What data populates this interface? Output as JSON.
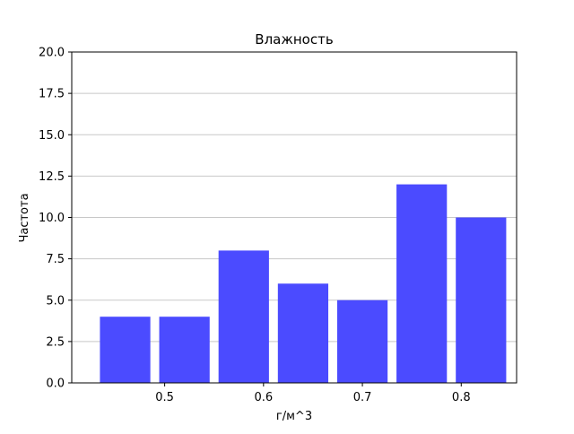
{
  "chart_data": {
    "type": "bar",
    "title": "Влажность",
    "xlabel": "г/м^3",
    "ylabel": "Частота",
    "bin_centers": [
      0.46,
      0.52,
      0.58,
      0.64,
      0.7,
      0.76,
      0.82
    ],
    "bin_width": 0.06,
    "values": [
      4,
      4,
      8,
      6,
      5,
      12,
      10
    ],
    "xlim": [
      0.406,
      0.856
    ],
    "ylim": [
      0,
      20
    ],
    "xticks": [
      "0.5",
      "0.6",
      "0.7",
      "0.8"
    ],
    "xtick_values": [
      0.5,
      0.6,
      0.7,
      0.8
    ],
    "yticks": [
      "0.0",
      "2.5",
      "5.0",
      "7.5",
      "10.0",
      "12.5",
      "15.0",
      "17.5",
      "20.0"
    ],
    "ytick_values": [
      0,
      2.5,
      5,
      7.5,
      10,
      12.5,
      15,
      17.5,
      20
    ],
    "grid": "y",
    "bar_color": "#4b4bff"
  }
}
